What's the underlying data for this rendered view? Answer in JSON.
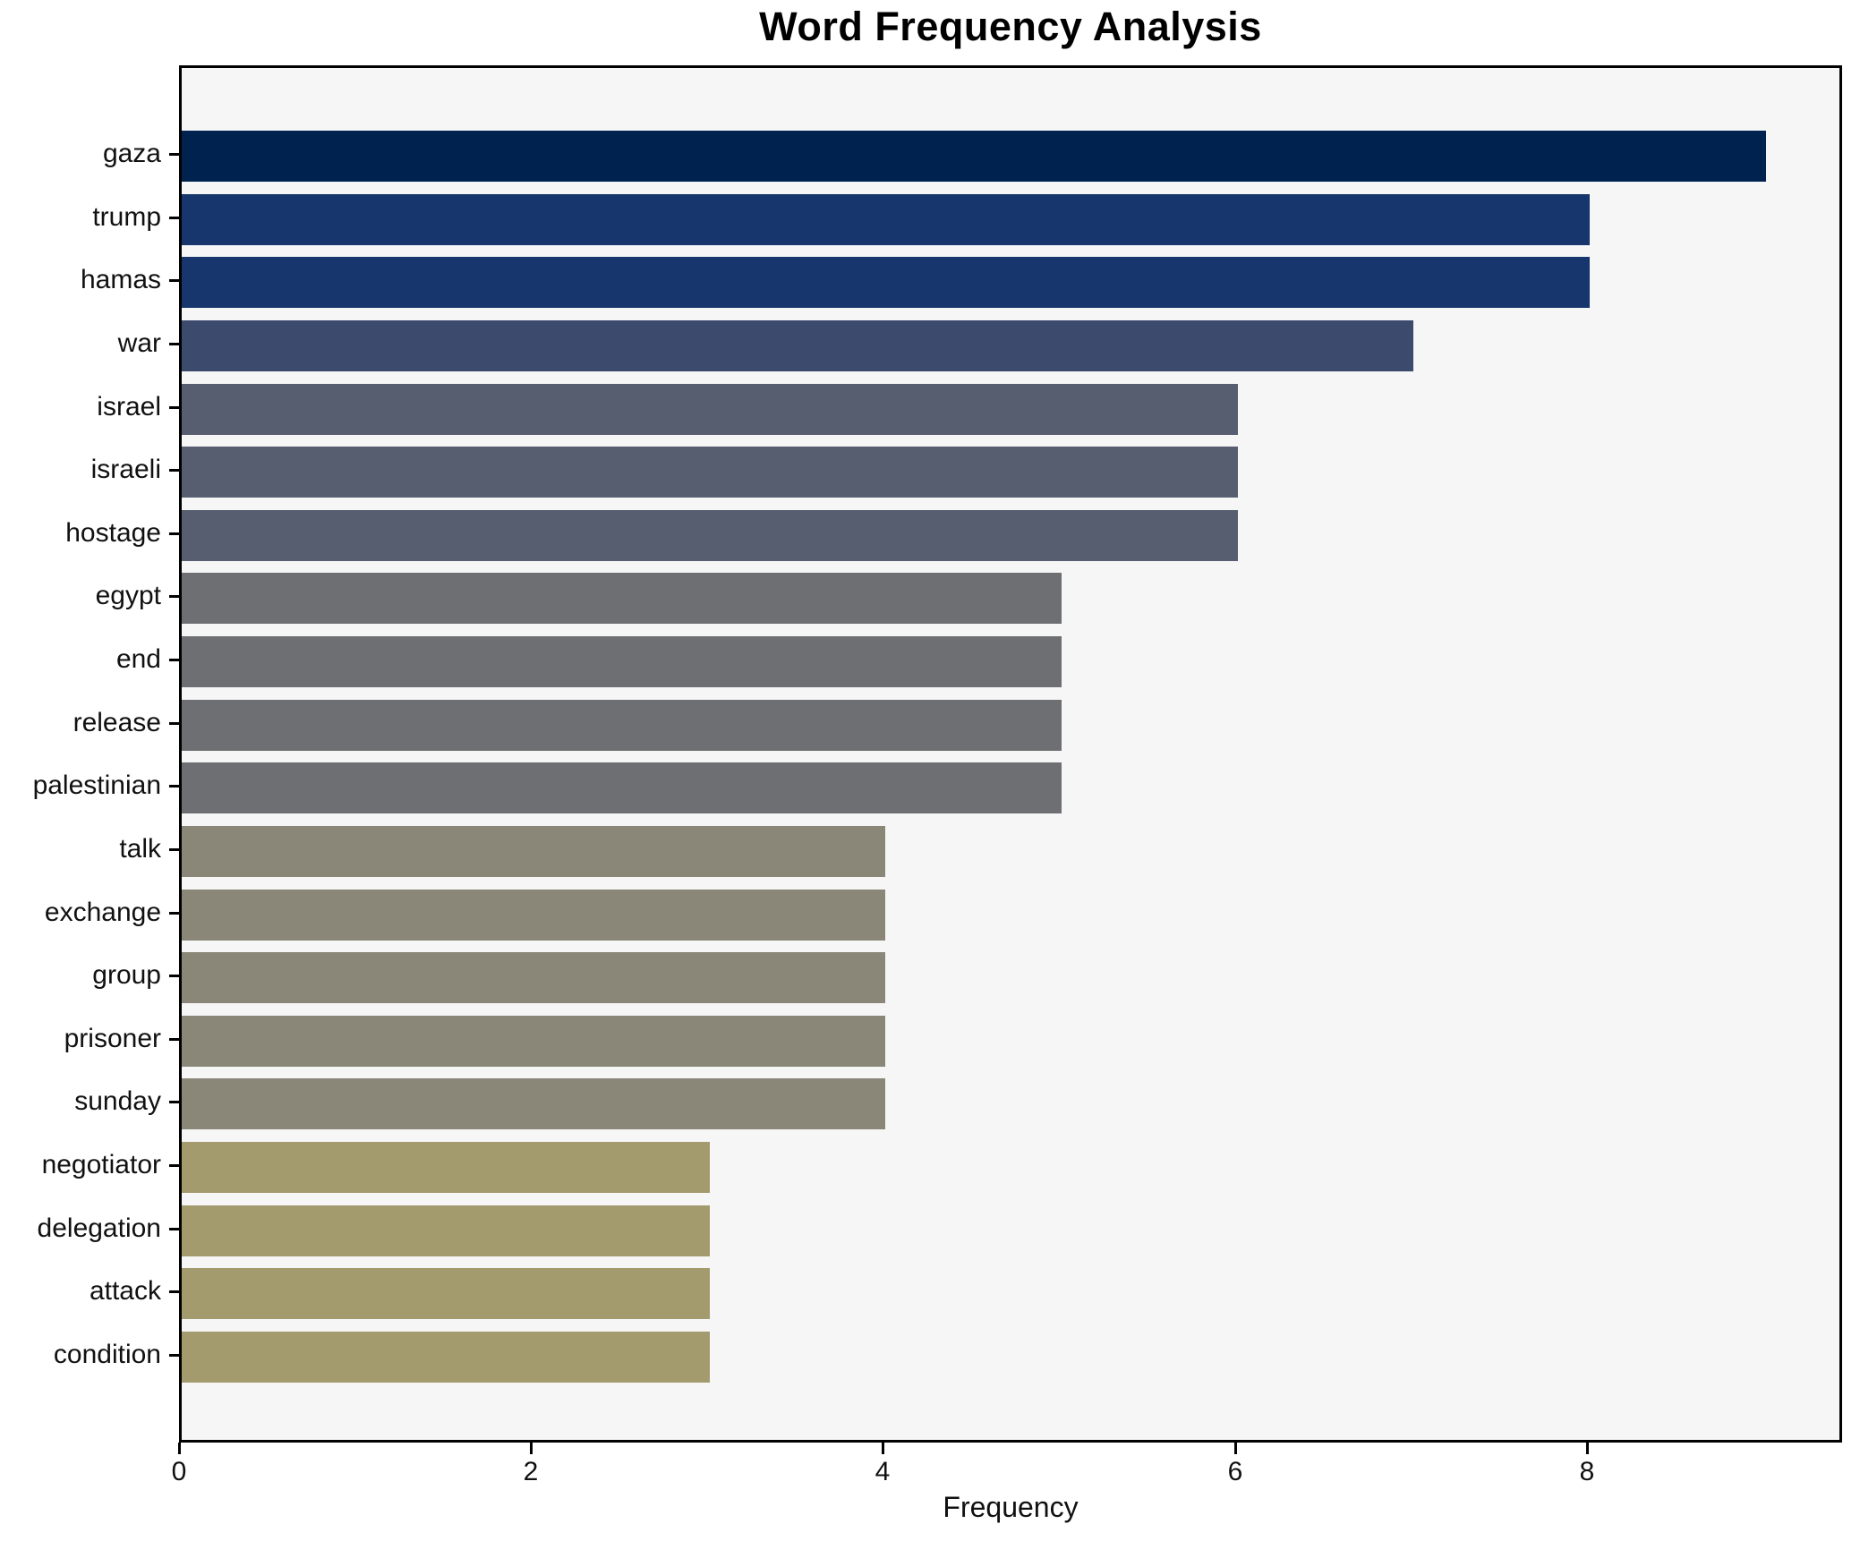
{
  "chart_data": {
    "type": "bar",
    "orientation": "horizontal",
    "title": "Word Frequency Analysis",
    "xlabel": "Frequency",
    "ylabel": "",
    "categories": [
      "gaza",
      "trump",
      "hamas",
      "war",
      "israel",
      "israeli",
      "hostage",
      "egypt",
      "end",
      "release",
      "palestinian",
      "talk",
      "exchange",
      "group",
      "prisoner",
      "sunday",
      "negotiator",
      "delegation",
      "attack",
      "condition"
    ],
    "values": [
      9,
      8,
      8,
      7,
      6,
      6,
      6,
      5,
      5,
      5,
      5,
      4,
      4,
      4,
      4,
      4,
      3,
      3,
      3,
      3
    ],
    "bar_colors": [
      "#00224e",
      "#17366e",
      "#17366e",
      "#3c4a6d",
      "#575e6f",
      "#575e6f",
      "#575e6f",
      "#6e6f72",
      "#6e6f72",
      "#6e6f72",
      "#6e6f72",
      "#8a8778",
      "#8a8778",
      "#8a8778",
      "#8a8778",
      "#8a8778",
      "#a39a6e",
      "#a39a6e",
      "#a39a6e",
      "#a39a6e"
    ],
    "xticks": [
      0,
      2,
      4,
      6,
      8
    ],
    "xlim": [
      0,
      9.45
    ],
    "grid": false,
    "legend": "none",
    "plot_background": "#f6f6f7",
    "figure_background": "#ffffff"
  }
}
